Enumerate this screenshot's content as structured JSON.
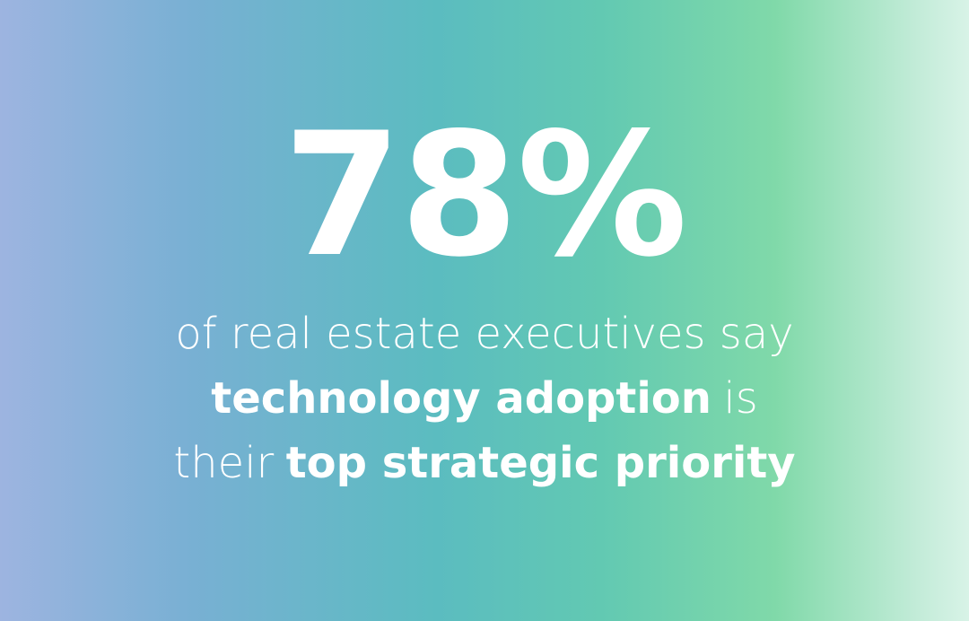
{
  "stat": "78%",
  "statement": {
    "line1": {
      "text": "of real estate executives say"
    },
    "line2": {
      "bold": "technology adoption",
      "text": "is"
    },
    "line3": {
      "text": "their",
      "bold": "top strategic priority"
    }
  }
}
